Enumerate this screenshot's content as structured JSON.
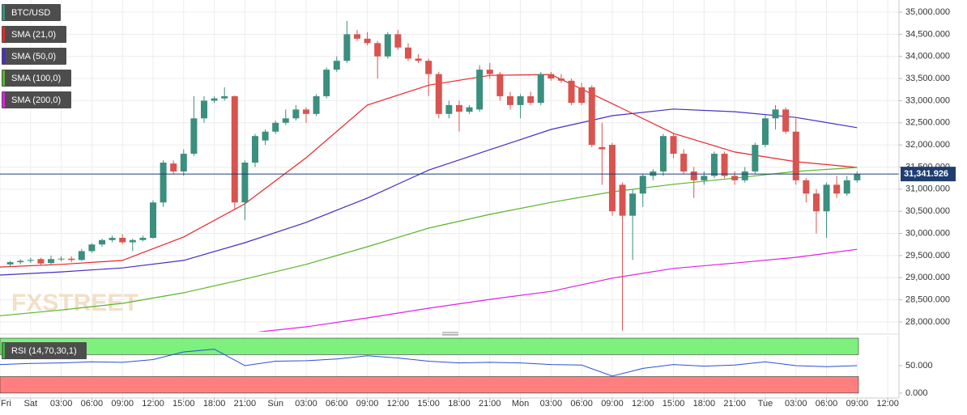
{
  "chart_data": {
    "type": "candlestick",
    "name": "BTC/USD",
    "up_color": "#3b8f7e",
    "down_color": "#d9534f",
    "x": [
      -2,
      -1,
      0,
      1,
      2,
      3,
      4,
      5,
      6,
      7,
      8,
      9,
      10,
      11,
      12,
      13,
      14,
      15,
      16,
      17,
      18,
      19,
      20,
      21,
      22,
      23,
      24,
      25,
      26,
      27,
      28,
      29,
      30,
      31,
      32,
      33,
      34,
      35,
      36,
      37,
      38,
      39,
      40,
      41,
      42,
      43,
      44,
      45,
      46,
      47,
      48,
      49,
      50,
      51,
      52,
      53,
      54,
      55,
      56,
      57,
      58,
      59,
      60,
      61,
      62,
      63,
      64,
      65,
      66,
      67,
      68,
      69,
      70,
      71,
      72,
      73,
      74,
      75,
      76,
      77,
      78,
      79,
      80,
      81
    ],
    "candles": [
      [
        29300,
        29380,
        29250,
        29350
      ],
      [
        29350,
        29420,
        29300,
        29380
      ],
      [
        29380,
        29450,
        29330,
        29400
      ],
      [
        29420,
        29450,
        29280,
        29320
      ],
      [
        29330,
        29500,
        29300,
        29420
      ],
      [
        29420,
        29480,
        29370,
        29430
      ],
      [
        29430,
        29480,
        29350,
        29400
      ],
      [
        29400,
        29650,
        29380,
        29600
      ],
      [
        29600,
        29780,
        29560,
        29750
      ],
      [
        29750,
        29880,
        29700,
        29850
      ],
      [
        29850,
        29950,
        29800,
        29900
      ],
      [
        29900,
        29980,
        29760,
        29800
      ],
      [
        29800,
        29880,
        29600,
        29850
      ],
      [
        29850,
        29950,
        29820,
        29900
      ],
      [
        29900,
        30750,
        29880,
        30700
      ],
      [
        30700,
        31650,
        30600,
        31600
      ],
      [
        31580,
        31650,
        31350,
        31400
      ],
      [
        31400,
        31900,
        31300,
        31800
      ],
      [
        31800,
        33100,
        31750,
        32600
      ],
      [
        32600,
        33100,
        32500,
        33000
      ],
      [
        33000,
        33100,
        32950,
        33050
      ],
      [
        33050,
        33300,
        33000,
        33100
      ],
      [
        33100,
        33120,
        30550,
        30700
      ],
      [
        30700,
        31650,
        30300,
        31600
      ],
      [
        31600,
        32250,
        31500,
        32200
      ],
      [
        32100,
        32350,
        32000,
        32300
      ],
      [
        32300,
        32550,
        32250,
        32500
      ],
      [
        32500,
        32800,
        32450,
        32600
      ],
      [
        32600,
        32900,
        32550,
        32800
      ],
      [
        32800,
        32850,
        32500,
        32700
      ],
      [
        32700,
        33150,
        32650,
        33100
      ],
      [
        33100,
        33750,
        33050,
        33700
      ],
      [
        33700,
        34000,
        33650,
        33900
      ],
      [
        33900,
        34800,
        33850,
        34500
      ],
      [
        34500,
        34600,
        34350,
        34400
      ],
      [
        34400,
        34550,
        34250,
        34300
      ],
      [
        34300,
        34350,
        33500,
        34000
      ],
      [
        34000,
        34550,
        33950,
        34500
      ],
      [
        34500,
        34600,
        34150,
        34200
      ],
      [
        34200,
        34300,
        33900,
        33950
      ],
      [
        33950,
        34050,
        33850,
        33900
      ],
      [
        33900,
        33950,
        33100,
        33600
      ],
      [
        33600,
        33650,
        32600,
        32700
      ],
      [
        32700,
        33000,
        32600,
        32900
      ],
      [
        32900,
        33000,
        32300,
        32750
      ],
      [
        32750,
        32900,
        32700,
        32850
      ],
      [
        32800,
        33800,
        32750,
        33700
      ],
      [
        33700,
        33850,
        33500,
        33600
      ],
      [
        33600,
        33650,
        33000,
        33100
      ],
      [
        33100,
        33200,
        32800,
        32900
      ],
      [
        32900,
        33150,
        32600,
        33100
      ],
      [
        33100,
        33200,
        32900,
        32950
      ],
      [
        32950,
        33650,
        32900,
        33600
      ],
      [
        33600,
        33650,
        33450,
        33500
      ],
      [
        33500,
        33600,
        33400,
        33450
      ],
      [
        33450,
        33500,
        32900,
        32950
      ],
      [
        33300,
        33400,
        32900,
        32950
      ],
      [
        33300,
        33350,
        31950,
        32000
      ],
      [
        31950,
        32500,
        31100,
        31900
      ],
      [
        32000,
        32050,
        30400,
        30500
      ],
      [
        31100,
        31150,
        27800,
        30400
      ],
      [
        30400,
        31000,
        29400,
        30900
      ],
      [
        30900,
        31350,
        30600,
        31300
      ],
      [
        31300,
        31450,
        31200,
        31400
      ],
      [
        31400,
        32250,
        31300,
        32200
      ],
      [
        32200,
        32250,
        31700,
        31800
      ],
      [
        31800,
        31900,
        31350,
        31400
      ],
      [
        31400,
        31500,
        30800,
        31200
      ],
      [
        31200,
        31400,
        31100,
        31300
      ],
      [
        31300,
        31850,
        31250,
        31800
      ],
      [
        31800,
        31850,
        31250,
        31300
      ],
      [
        31300,
        31400,
        31100,
        31200
      ],
      [
        31200,
        31500,
        31150,
        31400
      ],
      [
        31400,
        32050,
        31350,
        32000
      ],
      [
        32000,
        32700,
        31950,
        32600
      ],
      [
        32600,
        32900,
        32350,
        32800
      ],
      [
        32800,
        32850,
        32250,
        32300
      ],
      [
        32300,
        32600,
        31100,
        31200
      ],
      [
        31200,
        31250,
        30700,
        30900
      ],
      [
        30900,
        31000,
        30000,
        30500
      ],
      [
        30500,
        31150,
        29900,
        31100
      ],
      [
        31100,
        31300,
        30800,
        30900
      ],
      [
        30900,
        31300,
        30850,
        31200
      ],
      [
        31200,
        31400,
        31150,
        31342
      ]
    ],
    "overlay_x": [
      -3,
      3,
      9,
      15,
      21,
      27,
      33,
      39,
      45,
      51,
      57,
      63,
      69,
      75,
      81
    ],
    "overlays": [
      {
        "name": "SMA (21,0)",
        "color": "#e8262a",
        "values": [
          29240,
          29300,
          29390,
          29920,
          30670,
          31710,
          32900,
          33350,
          33570,
          33590,
          32930,
          32260,
          31840,
          31620,
          31490
        ]
      },
      {
        "name": "SMA (50,0)",
        "color": "#4b2bc4",
        "values": [
          29060,
          29130,
          29220,
          29390,
          29790,
          30250,
          30800,
          31430,
          31890,
          32350,
          32660,
          32810,
          32750,
          32620,
          32390
        ]
      },
      {
        "name": "SMA (100,0)",
        "color": "#5ab52a",
        "values": [
          28140,
          28270,
          28420,
          28660,
          28970,
          29300,
          29700,
          30120,
          30430,
          30700,
          30940,
          31110,
          31250,
          31400,
          31490
        ]
      },
      {
        "name": "SMA (200,0)",
        "color": "#e020e0",
        "values": [
          null,
          null,
          null,
          null,
          27740,
          27890,
          28090,
          28310,
          28510,
          28690,
          28990,
          29210,
          29330,
          29460,
          29640
        ]
      }
    ],
    "xlim": [
      -3,
      85.1
    ],
    "xticks": [
      {
        "value": -3,
        "label": "Fri"
      },
      {
        "value": 0,
        "label": "Sat"
      },
      {
        "value": 3,
        "label": "03:00"
      },
      {
        "value": 6,
        "label": "06:00"
      },
      {
        "value": 9,
        "label": "09:00"
      },
      {
        "value": 12,
        "label": "12:00"
      },
      {
        "value": 15,
        "label": "15:00"
      },
      {
        "value": 18,
        "label": "18:00"
      },
      {
        "value": 21,
        "label": "21:00"
      },
      {
        "value": 24,
        "label": "Sun"
      },
      {
        "value": 27,
        "label": "03:00"
      },
      {
        "value": 30,
        "label": "06:00"
      },
      {
        "value": 33,
        "label": "09:00"
      },
      {
        "value": 36,
        "label": "12:00"
      },
      {
        "value": 39,
        "label": "15:00"
      },
      {
        "value": 42,
        "label": "18:00"
      },
      {
        "value": 45,
        "label": "21:00"
      },
      {
        "value": 48,
        "label": "Mon"
      },
      {
        "value": 51,
        "label": "03:00"
      },
      {
        "value": 54,
        "label": "06:00"
      },
      {
        "value": 57,
        "label": "09:00"
      },
      {
        "value": 60,
        "label": "12:00"
      },
      {
        "value": 63,
        "label": "15:00"
      },
      {
        "value": 66,
        "label": "18:00"
      },
      {
        "value": 69,
        "label": "21:00"
      },
      {
        "value": 72,
        "label": "Tue"
      },
      {
        "value": 75,
        "label": "03:00"
      },
      {
        "value": 78,
        "label": "06:00"
      },
      {
        "value": 81,
        "label": "09:00"
      },
      {
        "value": 84,
        "label": "12:00"
      }
    ],
    "ylim": [
      27780,
      35274
    ],
    "yticks": [
      {
        "value": 28000,
        "label": "28,000.000"
      },
      {
        "value": 28500,
        "label": "28,500.000"
      },
      {
        "value": 29000,
        "label": "29,000.000"
      },
      {
        "value": 29500,
        "label": "29,500.000"
      },
      {
        "value": 30000,
        "label": "30,000.000"
      },
      {
        "value": 30500,
        "label": "30,500.000"
      },
      {
        "value": 31000,
        "label": "31,000.000"
      },
      {
        "value": 31500,
        "label": "31,500.000"
      },
      {
        "value": 32000,
        "label": "32,000.000"
      },
      {
        "value": 32500,
        "label": "32,500.000"
      },
      {
        "value": 33000,
        "label": "33,000.000"
      },
      {
        "value": 33500,
        "label": "33,500.000"
      },
      {
        "value": 34000,
        "label": "34,000.000"
      },
      {
        "value": 34500,
        "label": "34,500.000"
      },
      {
        "value": 35000,
        "label": "35,000.000"
      }
    ],
    "grid": true,
    "last_price": 31341.926,
    "last_price_label": "31,341.926",
    "last_price_color": "#1f3d70",
    "watermark": "FXSTREET",
    "indicator": {
      "name": "RSI (14,70,30,1)",
      "color": "#2a50d8",
      "marker_color": "#3cb43c",
      "x": [
        -3,
        0,
        3,
        6,
        9,
        12,
        15,
        18,
        21,
        24,
        27,
        30,
        33,
        36,
        39,
        42,
        45,
        48,
        51,
        54,
        57,
        60,
        63,
        66,
        69,
        72,
        75,
        78,
        81
      ],
      "values": [
        52,
        54,
        55,
        57,
        56,
        61,
        75,
        80,
        50,
        58,
        59,
        62,
        68,
        64,
        58,
        55,
        56,
        55,
        52,
        51,
        31,
        45,
        52,
        49,
        51,
        57,
        50,
        48,
        50
      ],
      "ylim": [
        -9,
        103
      ],
      "yticks": [
        {
          "value": 50,
          "label": "50.000"
        },
        {
          "value": 0,
          "label": "0.000"
        }
      ],
      "overbought": 70,
      "oversold": 30,
      "overbought_color": "#7ef07e",
      "oversold_color": "#ff7f7f"
    }
  }
}
